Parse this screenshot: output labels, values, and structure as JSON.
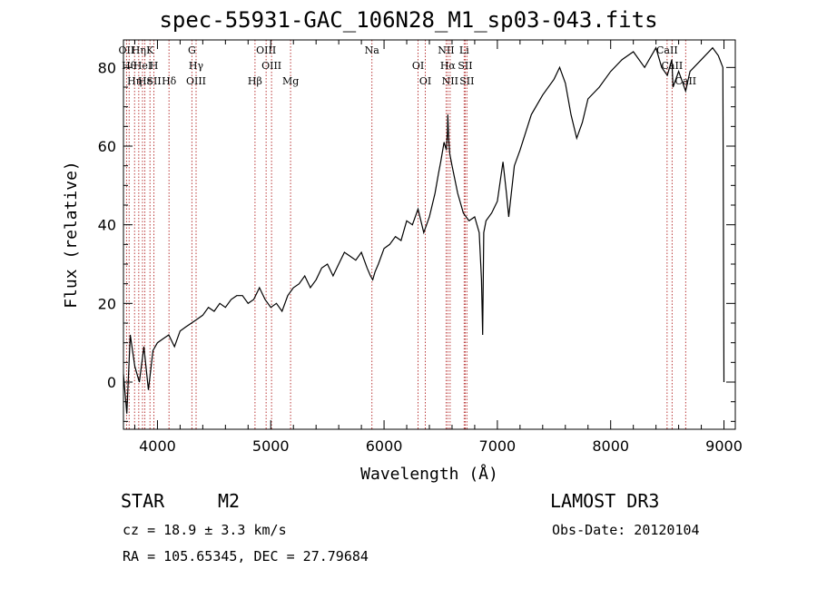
{
  "chart_data": {
    "type": "line",
    "title": "spec-55931-GAC_106N28_M1_sp03-043.fits",
    "xlabel": "Wavelength (Å)",
    "ylabel": "Flux (relative)",
    "xlim": [
      3700,
      9100
    ],
    "ylim": [
      -12,
      87
    ],
    "xticks": [
      4000,
      5000,
      6000,
      7000,
      8000,
      9000
    ],
    "yticks": [
      0,
      20,
      40,
      60,
      80
    ],
    "series": [
      {
        "name": "spectrum",
        "x": [
          3700,
          3730,
          3760,
          3800,
          3840,
          3880,
          3920,
          3960,
          4000,
          4050,
          4100,
          4150,
          4200,
          4250,
          4300,
          4350,
          4400,
          4450,
          4500,
          4550,
          4600,
          4650,
          4700,
          4750,
          4800,
          4850,
          4900,
          4950,
          5000,
          5050,
          5100,
          5150,
          5200,
          5250,
          5300,
          5350,
          5400,
          5450,
          5500,
          5550,
          5600,
          5650,
          5700,
          5750,
          5800,
          5850,
          5880,
          5900,
          5920,
          5950,
          6000,
          6050,
          6100,
          6150,
          6200,
          6250,
          6300,
          6350,
          6400,
          6450,
          6480,
          6500,
          6530,
          6550,
          6560,
          6563,
          6570,
          6580,
          6600,
          6650,
          6700,
          6750,
          6800,
          6840,
          6860,
          6870,
          6880,
          6900,
          6950,
          7000,
          7030,
          7050,
          7080,
          7100,
          7150,
          7200,
          7300,
          7400,
          7500,
          7550,
          7600,
          7650,
          7700,
          7750,
          7800,
          7900,
          8000,
          8100,
          8200,
          8300,
          8400,
          8450,
          8500,
          8540,
          8550,
          8600,
          8662,
          8700,
          8800,
          8900,
          8950,
          8990,
          9000
        ],
        "values": [
          2,
          -8,
          12,
          4,
          0,
          9,
          -2,
          8,
          10,
          11,
          12,
          9,
          13,
          14,
          15,
          16,
          17,
          19,
          18,
          20,
          19,
          21,
          22,
          22,
          20,
          21,
          24,
          21,
          19,
          20,
          18,
          22,
          24,
          25,
          27,
          24,
          26,
          29,
          30,
          27,
          30,
          33,
          32,
          31,
          33,
          29,
          27,
          26,
          28,
          30,
          34,
          35,
          37,
          36,
          41,
          40,
          44,
          38,
          42,
          48,
          53,
          56,
          61,
          59,
          64,
          68,
          62,
          58,
          55,
          48,
          43,
          41,
          42,
          38,
          26,
          12,
          38,
          41,
          43,
          46,
          52,
          56,
          48,
          42,
          55,
          59,
          68,
          73,
          77,
          80,
          76,
          68,
          62,
          66,
          72,
          75,
          79,
          82,
          84,
          80,
          85,
          80,
          78,
          82,
          75,
          79,
          74,
          79,
          82,
          85,
          83,
          80,
          0
        ],
        "color": "#000000"
      }
    ],
    "line_markers": [
      {
        "w": 3727,
        "labels": [
          "OII"
        ]
      },
      {
        "w": 3750,
        "labels": [
          "Hθ"
        ]
      },
      {
        "w": 3798,
        "labels": [
          "Hη"
        ]
      },
      {
        "w": 3835,
        "labels": [
          "Hη"
        ]
      },
      {
        "w": 3868,
        "labels": [
          "HeI"
        ]
      },
      {
        "w": 3889,
        "labels": [
          "Hε"
        ]
      },
      {
        "w": 3934,
        "labels": [
          "K"
        ]
      },
      {
        "w": 3969,
        "labels": [
          "H",
          "SII"
        ]
      },
      {
        "w": 4102,
        "labels": [
          "Hδ"
        ]
      },
      {
        "w": 4304,
        "labels": [
          "G"
        ]
      },
      {
        "w": 4341,
        "labels": [
          "Hγ",
          "OIII"
        ]
      },
      {
        "w": 4861,
        "labels": [
          "Hβ"
        ]
      },
      {
        "w": 4959,
        "labels": [
          "OIII"
        ]
      },
      {
        "w": 5007,
        "labels": [
          "OIII"
        ]
      },
      {
        "w": 5175,
        "labels": [
          "Mg"
        ]
      },
      {
        "w": 5893,
        "labels": [
          "Na"
        ]
      },
      {
        "w": 6300,
        "labels": [
          "OI"
        ]
      },
      {
        "w": 6364,
        "labels": [
          "OI"
        ]
      },
      {
        "w": 6548,
        "labels": [
          "NII"
        ]
      },
      {
        "w": 6563,
        "labels": [
          "Hα"
        ]
      },
      {
        "w": 6583,
        "labels": [
          "NII"
        ]
      },
      {
        "w": 6707,
        "labels": [
          "Li"
        ]
      },
      {
        "w": 6716,
        "labels": [
          "SII"
        ]
      },
      {
        "w": 6731,
        "labels": [
          "SII"
        ]
      },
      {
        "w": 8498,
        "labels": [
          "CaII"
        ]
      },
      {
        "w": 8542,
        "labels": [
          "CaII"
        ]
      },
      {
        "w": 8662,
        "labels": [
          "CaII"
        ]
      }
    ]
  },
  "info": {
    "object_class": "STAR",
    "subclass": "M2",
    "survey": "LAMOST DR3",
    "cz": "cz = 18.9 ± 3.3 km/s",
    "obs_date": "Obs-Date: 20120104",
    "coords": "RA = 105.65345, DEC =  27.79684"
  }
}
